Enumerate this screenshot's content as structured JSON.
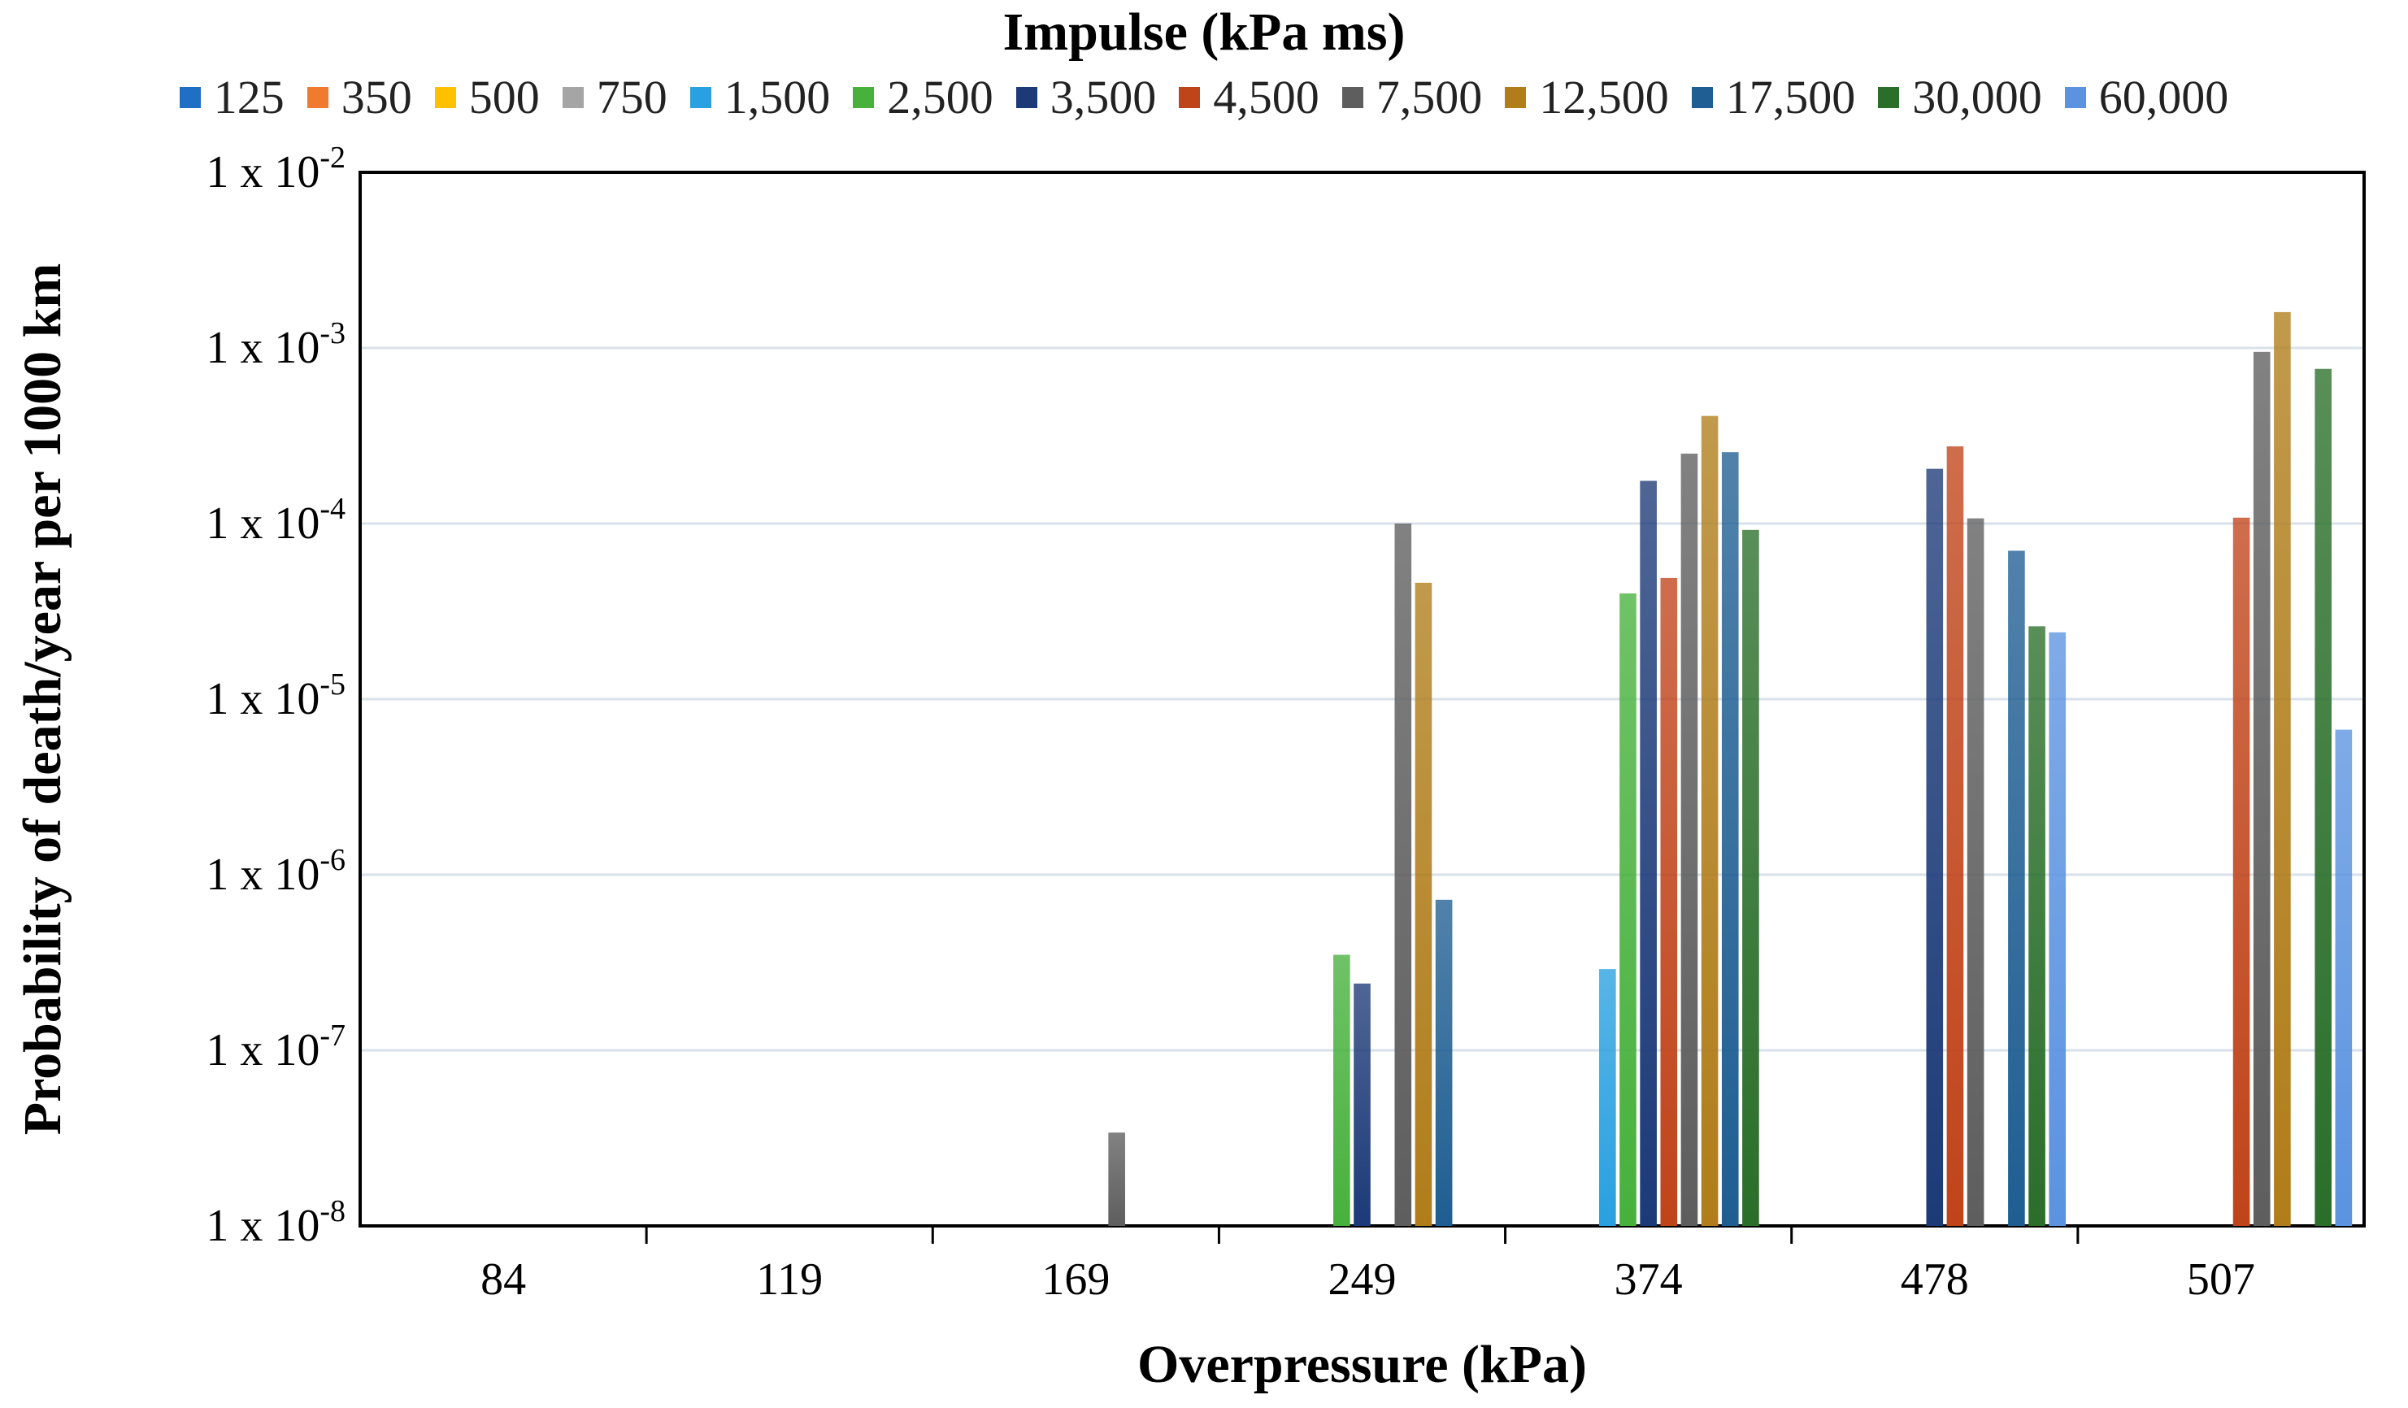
{
  "chart_data": {
    "type": "bar",
    "scale": "log",
    "xlabel": "Overpressure (kPa)",
    "ylabel": "Probability of death/year per 1000 km",
    "legend_title": "Impulse (kPa ms)",
    "legend_position": "top",
    "grid": true,
    "ylim": [
      1e-08,
      0.01
    ],
    "yticks": [
      {
        "exp": "-2",
        "value": 0.01
      },
      {
        "exp": "-3",
        "value": 0.001
      },
      {
        "exp": "-4",
        "value": 0.0001
      },
      {
        "exp": "-5",
        "value": 1e-05
      },
      {
        "exp": "-6",
        "value": 1e-06
      },
      {
        "exp": "-7",
        "value": 1e-07
      },
      {
        "exp": "-8",
        "value": 1e-08
      }
    ],
    "ytick_prefix": "1 x 10",
    "categories": [
      "84",
      "119",
      "169",
      "249",
      "374",
      "478",
      "507"
    ],
    "series": [
      {
        "name": "125",
        "color": "#1f6fc4",
        "values": [
          null,
          null,
          null,
          null,
          null,
          null,
          null
        ]
      },
      {
        "name": "350",
        "color": "#f07a2d",
        "values": [
          null,
          null,
          null,
          null,
          null,
          null,
          null
        ]
      },
      {
        "name": "500",
        "color": "#ffc000",
        "values": [
          null,
          null,
          null,
          null,
          null,
          null,
          null
        ]
      },
      {
        "name": "750",
        "color": "#a5a5a5",
        "values": [
          null,
          null,
          null,
          null,
          null,
          null,
          null
        ]
      },
      {
        "name": "1,500",
        "color": "#29a0e0",
        "values": [
          null,
          null,
          null,
          null,
          2.9e-07,
          null,
          null
        ]
      },
      {
        "name": "2,500",
        "color": "#47b13c",
        "values": [
          null,
          null,
          null,
          3.5e-07,
          4e-05,
          null,
          null
        ]
      },
      {
        "name": "3,500",
        "color": "#1c3a78",
        "values": [
          null,
          null,
          null,
          2.4e-07,
          0.000175,
          0.000205,
          null
        ]
      },
      {
        "name": "4,500",
        "color": "#c0441a",
        "values": [
          null,
          null,
          null,
          null,
          4.9e-05,
          0.000275,
          0.000108
        ]
      },
      {
        "name": "7,500",
        "color": "#5e5e5e",
        "values": [
          null,
          null,
          3.4e-08,
          0.0001,
          0.00025,
          0.000107,
          0.00095
        ]
      },
      {
        "name": "12,500",
        "color": "#b07d1a",
        "values": [
          null,
          null,
          null,
          4.6e-05,
          0.00041,
          null,
          0.0016
        ]
      },
      {
        "name": "17,500",
        "color": "#1f5e92",
        "values": [
          null,
          null,
          null,
          7.2e-07,
          0.000255,
          7e-05,
          null
        ]
      },
      {
        "name": "30,000",
        "color": "#2a6e2a",
        "values": [
          null,
          null,
          null,
          null,
          9.2e-05,
          2.6e-05,
          0.00076
        ]
      },
      {
        "name": "60,000",
        "color": "#5b93e0",
        "values": [
          null,
          null,
          null,
          null,
          null,
          2.4e-05,
          6.7e-06
        ]
      }
    ]
  }
}
